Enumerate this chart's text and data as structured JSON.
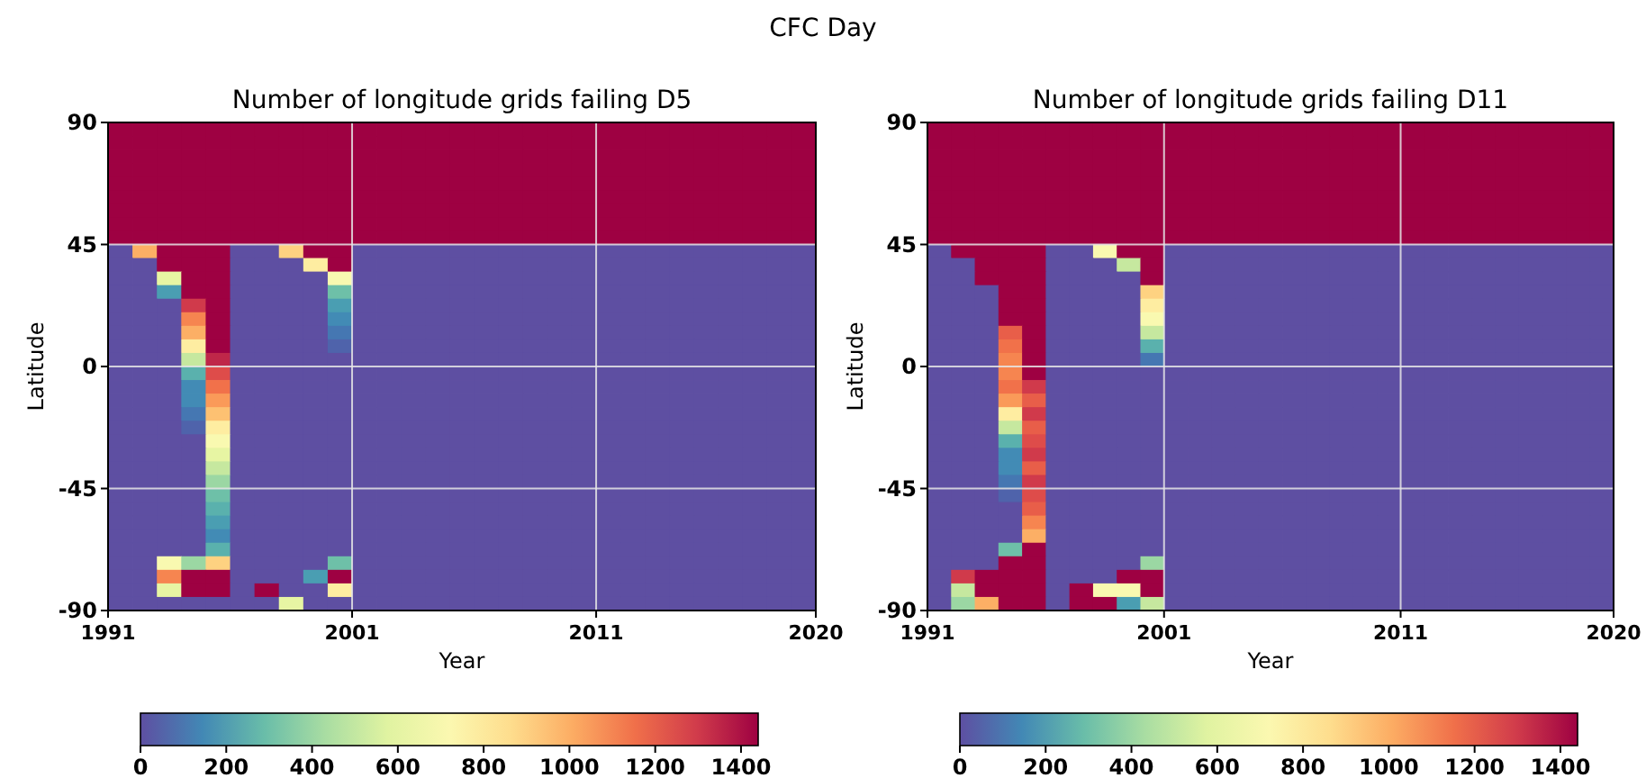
{
  "chart_data": [
    {
      "type": "heatmap",
      "title": "Number of longitude grids failing D5",
      "xlabel": "Year",
      "ylabel": "Latitude",
      "annotations": [
        "CFC Day"
      ],
      "x": [
        1991.5,
        1992.5,
        1993.5,
        1994.5,
        1995.5,
        1996.5,
        1997.5,
        1998.5,
        1999.5,
        2000.5,
        2001.5,
        2002.5,
        2003.5,
        2004.5,
        2005.5,
        2006.5,
        2007.5,
        2008.5,
        2009.5,
        2010.5,
        2011.5,
        2012.5,
        2013.5,
        2014.5,
        2015.5,
        2016.5,
        2017.5,
        2018.5,
        2019.5
      ],
      "xlim": [
        1991,
        2020
      ],
      "xticks": [
        1991,
        2001,
        2011,
        2020
      ],
      "ylim": [
        -90,
        90
      ],
      "yticks": [
        90,
        45,
        0,
        -45,
        -90
      ],
      "grid": true,
      "clim": [
        0,
        1440
      ],
      "cticks": [
        0,
        200,
        400,
        600,
        800,
        1000,
        1200,
        1400
      ],
      "cells": [
        [
          1440,
          1440,
          1440,
          1440,
          1440,
          1440,
          1440,
          1440,
          1440,
          1440,
          1440,
          1440,
          1440,
          1440,
          1440,
          1440,
          1440,
          1440,
          1440,
          1440,
          1440,
          1440,
          1440,
          1440,
          1440,
          1440,
          1440,
          1440,
          1440
        ],
        [
          1440,
          1440,
          1440,
          1440,
          1440,
          1440,
          1440,
          1440,
          1440,
          1440,
          1440,
          1440,
          1440,
          1440,
          1440,
          1440,
          1440,
          1440,
          1440,
          1440,
          1440,
          1440,
          1440,
          1440,
          1440,
          1440,
          1440,
          1440,
          1440
        ],
        [
          1440,
          1440,
          1440,
          1440,
          1440,
          1440,
          1440,
          1440,
          1440,
          1440,
          1440,
          1440,
          1440,
          1440,
          1440,
          1440,
          1440,
          1440,
          1440,
          1440,
          1440,
          1440,
          1440,
          1440,
          1440,
          1440,
          1440,
          1440,
          1440
        ],
        [
          1440,
          1440,
          1440,
          1440,
          1440,
          1440,
          1440,
          1440,
          1440,
          1440,
          1440,
          1440,
          1440,
          1440,
          1440,
          1440,
          1440,
          1440,
          1440,
          1440,
          1440,
          1440,
          1440,
          1440,
          1440,
          1440,
          1440,
          1440,
          1440
        ],
        [
          1440,
          1440,
          1440,
          1440,
          1440,
          1440,
          1440,
          1440,
          1440,
          1440,
          1440,
          1440,
          1440,
          1440,
          1440,
          1440,
          1440,
          1440,
          1440,
          1440,
          1440,
          1440,
          1440,
          1440,
          1440,
          1440,
          1440,
          1440,
          1440
        ],
        [
          1440,
          1440,
          1440,
          1440,
          1440,
          1440,
          1440,
          1440,
          1440,
          1440,
          1440,
          1440,
          1440,
          1440,
          1440,
          1440,
          1440,
          1440,
          1440,
          1440,
          1440,
          1440,
          1440,
          1440,
          1440,
          1440,
          1440,
          1440,
          1440
        ],
        [
          1440,
          1440,
          1440,
          1440,
          1440,
          1440,
          1440,
          1440,
          1440,
          1440,
          1440,
          1440,
          1440,
          1440,
          1440,
          1440,
          1440,
          1440,
          1440,
          1440,
          1440,
          1440,
          1440,
          1440,
          1440,
          1440,
          1440,
          1440,
          1440
        ],
        [
          1440,
          1440,
          1440,
          1440,
          1440,
          1440,
          1440,
          1440,
          1440,
          1440,
          1440,
          1440,
          1440,
          1440,
          1440,
          1440,
          1440,
          1440,
          1440,
          1440,
          1440,
          1440,
          1440,
          1440,
          1440,
          1440,
          1440,
          1440,
          1440
        ],
        [
          1440,
          1440,
          1440,
          1440,
          1440,
          1440,
          1440,
          1440,
          1440,
          1440,
          1440,
          1440,
          1440,
          1440,
          1440,
          1440,
          1440,
          1440,
          1440,
          1440,
          1440,
          1440,
          1440,
          1440,
          1440,
          1440,
          1440,
          1440,
          1440
        ],
        [
          0,
          1000,
          1440,
          1440,
          1440,
          0,
          0,
          900,
          1440,
          1440,
          0,
          0,
          0,
          0,
          0,
          0,
          0,
          0,
          0,
          0,
          0,
          0,
          0,
          0,
          0,
          0,
          0,
          0,
          0
        ],
        [
          0,
          0,
          1440,
          1440,
          1440,
          0,
          0,
          0,
          800,
          1440,
          0,
          0,
          0,
          0,
          0,
          0,
          0,
          0,
          0,
          0,
          0,
          0,
          0,
          0,
          0,
          0,
          0,
          0,
          0
        ],
        [
          0,
          0,
          600,
          1440,
          1440,
          0,
          0,
          0,
          0,
          700,
          0,
          0,
          0,
          0,
          0,
          0,
          0,
          0,
          0,
          0,
          0,
          0,
          0,
          0,
          0,
          0,
          0,
          0,
          0
        ],
        [
          0,
          0,
          200,
          1440,
          1440,
          0,
          0,
          0,
          0,
          300,
          0,
          0,
          0,
          0,
          0,
          0,
          0,
          0,
          0,
          0,
          0,
          0,
          0,
          0,
          0,
          0,
          0,
          0,
          0
        ],
        [
          0,
          0,
          0,
          1300,
          1440,
          0,
          0,
          0,
          0,
          200,
          0,
          0,
          0,
          0,
          0,
          0,
          0,
          0,
          0,
          0,
          0,
          0,
          0,
          0,
          0,
          0,
          0,
          0,
          0
        ],
        [
          0,
          0,
          0,
          1100,
          1440,
          0,
          0,
          0,
          0,
          150,
          0,
          0,
          0,
          0,
          0,
          0,
          0,
          0,
          0,
          0,
          0,
          0,
          0,
          0,
          0,
          0,
          0,
          0,
          0
        ],
        [
          0,
          0,
          0,
          1000,
          1440,
          0,
          0,
          0,
          0,
          100,
          0,
          0,
          0,
          0,
          0,
          0,
          0,
          0,
          0,
          0,
          0,
          0,
          0,
          0,
          0,
          0,
          0,
          0,
          0
        ],
        [
          0,
          0,
          0,
          800,
          1440,
          0,
          0,
          0,
          0,
          50,
          0,
          0,
          0,
          0,
          0,
          0,
          0,
          0,
          0,
          0,
          0,
          0,
          0,
          0,
          0,
          0,
          0,
          0,
          0
        ],
        [
          0,
          0,
          0,
          500,
          1350,
          0,
          0,
          0,
          0,
          0,
          0,
          0,
          0,
          0,
          0,
          0,
          0,
          0,
          0,
          0,
          0,
          0,
          0,
          0,
          0,
          0,
          0,
          0,
          0
        ],
        [
          0,
          0,
          0,
          250,
          1250,
          0,
          0,
          0,
          0,
          0,
          0,
          0,
          0,
          0,
          0,
          0,
          0,
          0,
          0,
          0,
          0,
          0,
          0,
          0,
          0,
          0,
          0,
          0,
          0
        ],
        [
          0,
          0,
          0,
          150,
          1150,
          0,
          0,
          0,
          0,
          0,
          0,
          0,
          0,
          0,
          0,
          0,
          0,
          0,
          0,
          0,
          0,
          0,
          0,
          0,
          0,
          0,
          0,
          0,
          0
        ],
        [
          0,
          0,
          0,
          150,
          1050,
          0,
          0,
          0,
          0,
          0,
          0,
          0,
          0,
          0,
          0,
          0,
          0,
          0,
          0,
          0,
          0,
          0,
          0,
          0,
          0,
          0,
          0,
          0,
          0
        ],
        [
          0,
          0,
          0,
          100,
          950,
          0,
          0,
          0,
          0,
          0,
          0,
          0,
          0,
          0,
          0,
          0,
          0,
          0,
          0,
          0,
          0,
          0,
          0,
          0,
          0,
          0,
          0,
          0,
          0
        ],
        [
          0,
          0,
          0,
          50,
          800,
          0,
          0,
          0,
          0,
          0,
          0,
          0,
          0,
          0,
          0,
          0,
          0,
          0,
          0,
          0,
          0,
          0,
          0,
          0,
          0,
          0,
          0,
          0,
          0
        ],
        [
          0,
          0,
          0,
          0,
          700,
          0,
          0,
          0,
          0,
          0,
          0,
          0,
          0,
          0,
          0,
          0,
          0,
          0,
          0,
          0,
          0,
          0,
          0,
          0,
          0,
          0,
          0,
          0,
          0
        ],
        [
          0,
          0,
          0,
          0,
          600,
          0,
          0,
          0,
          0,
          0,
          0,
          0,
          0,
          0,
          0,
          0,
          0,
          0,
          0,
          0,
          0,
          0,
          0,
          0,
          0,
          0,
          0,
          0,
          0
        ],
        [
          0,
          0,
          0,
          0,
          500,
          0,
          0,
          0,
          0,
          0,
          0,
          0,
          0,
          0,
          0,
          0,
          0,
          0,
          0,
          0,
          0,
          0,
          0,
          0,
          0,
          0,
          0,
          0,
          0
        ],
        [
          0,
          0,
          0,
          0,
          400,
          0,
          0,
          0,
          0,
          0,
          0,
          0,
          0,
          0,
          0,
          0,
          0,
          0,
          0,
          0,
          0,
          0,
          0,
          0,
          0,
          0,
          0,
          0,
          0
        ],
        [
          0,
          0,
          0,
          0,
          300,
          0,
          0,
          0,
          0,
          0,
          0,
          0,
          0,
          0,
          0,
          0,
          0,
          0,
          0,
          0,
          0,
          0,
          0,
          0,
          0,
          0,
          0,
          0,
          0
        ],
        [
          0,
          0,
          0,
          0,
          250,
          0,
          0,
          0,
          0,
          0,
          0,
          0,
          0,
          0,
          0,
          0,
          0,
          0,
          0,
          0,
          0,
          0,
          0,
          0,
          0,
          0,
          0,
          0,
          0
        ],
        [
          0,
          0,
          0,
          0,
          200,
          0,
          0,
          0,
          0,
          0,
          0,
          0,
          0,
          0,
          0,
          0,
          0,
          0,
          0,
          0,
          0,
          0,
          0,
          0,
          0,
          0,
          0,
          0,
          0
        ],
        [
          0,
          0,
          0,
          0,
          150,
          0,
          0,
          0,
          0,
          0,
          0,
          0,
          0,
          0,
          0,
          0,
          0,
          0,
          0,
          0,
          0,
          0,
          0,
          0,
          0,
          0,
          0,
          0,
          0
        ],
        [
          0,
          0,
          0,
          0,
          250,
          0,
          0,
          0,
          0,
          0,
          0,
          0,
          0,
          0,
          0,
          0,
          0,
          0,
          0,
          0,
          0,
          0,
          0,
          0,
          0,
          0,
          0,
          0,
          0
        ],
        [
          0,
          0,
          700,
          400,
          900,
          0,
          0,
          0,
          0,
          300,
          0,
          0,
          0,
          0,
          0,
          0,
          0,
          0,
          0,
          0,
          0,
          0,
          0,
          0,
          0,
          0,
          0,
          0,
          0
        ],
        [
          0,
          0,
          1100,
          1440,
          1440,
          0,
          0,
          0,
          200,
          1440,
          0,
          0,
          0,
          0,
          0,
          0,
          0,
          0,
          0,
          0,
          0,
          0,
          0,
          0,
          0,
          0,
          0,
          0,
          0
        ],
        [
          0,
          0,
          600,
          1440,
          1440,
          0,
          1440,
          0,
          0,
          800,
          0,
          0,
          0,
          0,
          0,
          0,
          0,
          0,
          0,
          0,
          0,
          0,
          0,
          0,
          0,
          0,
          0,
          0,
          0
        ],
        [
          0,
          0,
          0,
          0,
          0,
          0,
          0,
          600,
          0,
          0,
          0,
          0,
          0,
          0,
          0,
          0,
          0,
          0,
          0,
          0,
          0,
          0,
          0,
          0,
          0,
          0,
          0,
          0,
          0
        ]
      ]
    },
    {
      "type": "heatmap",
      "title": "Number of longitude grids failing D11",
      "xlabel": "Year",
      "ylabel": "Latitude",
      "x": [
        1991.5,
        1992.5,
        1993.5,
        1994.5,
        1995.5,
        1996.5,
        1997.5,
        1998.5,
        1999.5,
        2000.5,
        2001.5,
        2002.5,
        2003.5,
        2004.5,
        2005.5,
        2006.5,
        2007.5,
        2008.5,
        2009.5,
        2010.5,
        2011.5,
        2012.5,
        2013.5,
        2014.5,
        2015.5,
        2016.5,
        2017.5,
        2018.5,
        2019.5
      ],
      "xlim": [
        1991,
        2020
      ],
      "xticks": [
        1991,
        2001,
        2011,
        2020
      ],
      "ylim": [
        -90,
        90
      ],
      "yticks": [
        90,
        45,
        0,
        -45,
        -90
      ],
      "grid": true,
      "clim": [
        0,
        1440
      ],
      "cticks": [
        0,
        200,
        400,
        600,
        800,
        1000,
        1200,
        1400
      ],
      "cells": [
        [
          1440,
          1440,
          1440,
          1440,
          1440,
          1440,
          1440,
          1440,
          1440,
          1440,
          1440,
          1440,
          1440,
          1440,
          1440,
          1440,
          1440,
          1440,
          1440,
          1440,
          1440,
          1440,
          1440,
          1440,
          1440,
          1440,
          1440,
          1440,
          1440
        ],
        [
          1440,
          1440,
          1440,
          1440,
          1440,
          1440,
          1440,
          1440,
          1440,
          1440,
          1440,
          1440,
          1440,
          1440,
          1440,
          1440,
          1440,
          1440,
          1440,
          1440,
          1440,
          1440,
          1440,
          1440,
          1440,
          1440,
          1440,
          1440,
          1440
        ],
        [
          1440,
          1440,
          1440,
          1440,
          1440,
          1440,
          1440,
          1440,
          1440,
          1440,
          1440,
          1440,
          1440,
          1440,
          1440,
          1440,
          1440,
          1440,
          1440,
          1440,
          1440,
          1440,
          1440,
          1440,
          1440,
          1440,
          1440,
          1440,
          1440
        ],
        [
          1440,
          1440,
          1440,
          1440,
          1440,
          1440,
          1440,
          1440,
          1440,
          1440,
          1440,
          1440,
          1440,
          1440,
          1440,
          1440,
          1440,
          1440,
          1440,
          1440,
          1440,
          1440,
          1440,
          1440,
          1440,
          1440,
          1440,
          1440,
          1440
        ],
        [
          1440,
          1440,
          1440,
          1440,
          1440,
          1440,
          1440,
          1440,
          1440,
          1440,
          1440,
          1440,
          1440,
          1440,
          1440,
          1440,
          1440,
          1440,
          1440,
          1440,
          1440,
          1440,
          1440,
          1440,
          1440,
          1440,
          1440,
          1440,
          1440
        ],
        [
          1440,
          1440,
          1440,
          1440,
          1440,
          1440,
          1440,
          1440,
          1440,
          1440,
          1440,
          1440,
          1440,
          1440,
          1440,
          1440,
          1440,
          1440,
          1440,
          1440,
          1440,
          1440,
          1440,
          1440,
          1440,
          1440,
          1440,
          1440,
          1440
        ],
        [
          1440,
          1440,
          1440,
          1440,
          1440,
          1440,
          1440,
          1440,
          1440,
          1440,
          1440,
          1440,
          1440,
          1440,
          1440,
          1440,
          1440,
          1440,
          1440,
          1440,
          1440,
          1440,
          1440,
          1440,
          1440,
          1440,
          1440,
          1440,
          1440
        ],
        [
          1440,
          1440,
          1440,
          1440,
          1440,
          1440,
          1440,
          1440,
          1440,
          1440,
          1440,
          1440,
          1440,
          1440,
          1440,
          1440,
          1440,
          1440,
          1440,
          1440,
          1440,
          1440,
          1440,
          1440,
          1440,
          1440,
          1440,
          1440,
          1440
        ],
        [
          1440,
          1440,
          1440,
          1440,
          1440,
          1440,
          1440,
          1440,
          1440,
          1440,
          1440,
          1440,
          1440,
          1440,
          1440,
          1440,
          1440,
          1440,
          1440,
          1440,
          1440,
          1440,
          1440,
          1440,
          1440,
          1440,
          1440,
          1440,
          1440
        ],
        [
          0,
          1440,
          1440,
          1440,
          1440,
          0,
          0,
          700,
          1440,
          1440,
          0,
          0,
          0,
          0,
          0,
          0,
          0,
          0,
          0,
          0,
          0,
          0,
          0,
          0,
          0,
          0,
          0,
          0,
          0
        ],
        [
          0,
          0,
          1440,
          1440,
          1440,
          0,
          0,
          0,
          500,
          1440,
          0,
          0,
          0,
          0,
          0,
          0,
          0,
          0,
          0,
          0,
          0,
          0,
          0,
          0,
          0,
          0,
          0,
          0,
          0
        ],
        [
          0,
          0,
          1440,
          1440,
          1440,
          0,
          0,
          0,
          0,
          1440,
          0,
          0,
          0,
          0,
          0,
          0,
          0,
          0,
          0,
          0,
          0,
          0,
          0,
          0,
          0,
          0,
          0,
          0,
          0
        ],
        [
          0,
          0,
          0,
          1440,
          1440,
          0,
          0,
          0,
          0,
          900,
          0,
          0,
          0,
          0,
          0,
          0,
          0,
          0,
          0,
          0,
          0,
          0,
          0,
          0,
          0,
          0,
          0,
          0,
          0
        ],
        [
          0,
          0,
          0,
          1440,
          1440,
          0,
          0,
          0,
          0,
          800,
          0,
          0,
          0,
          0,
          0,
          0,
          0,
          0,
          0,
          0,
          0,
          0,
          0,
          0,
          0,
          0,
          0,
          0,
          0
        ],
        [
          0,
          0,
          0,
          1440,
          1440,
          0,
          0,
          0,
          0,
          700,
          0,
          0,
          0,
          0,
          0,
          0,
          0,
          0,
          0,
          0,
          0,
          0,
          0,
          0,
          0,
          0,
          0,
          0,
          0
        ],
        [
          0,
          0,
          0,
          1200,
          1440,
          0,
          0,
          0,
          0,
          500,
          0,
          0,
          0,
          0,
          0,
          0,
          0,
          0,
          0,
          0,
          0,
          0,
          0,
          0,
          0,
          0,
          0,
          0,
          0
        ],
        [
          0,
          0,
          0,
          1150,
          1440,
          0,
          0,
          0,
          0,
          250,
          0,
          0,
          0,
          0,
          0,
          0,
          0,
          0,
          0,
          0,
          0,
          0,
          0,
          0,
          0,
          0,
          0,
          0,
          0
        ],
        [
          0,
          0,
          0,
          1100,
          1440,
          0,
          0,
          0,
          0,
          100,
          0,
          0,
          0,
          0,
          0,
          0,
          0,
          0,
          0,
          0,
          0,
          0,
          0,
          0,
          0,
          0,
          0,
          0,
          0
        ],
        [
          0,
          0,
          0,
          1100,
          1440,
          0,
          0,
          0,
          0,
          0,
          0,
          0,
          0,
          0,
          0,
          0,
          0,
          0,
          0,
          0,
          0,
          0,
          0,
          0,
          0,
          0,
          0,
          0,
          0
        ],
        [
          0,
          0,
          0,
          1150,
          1300,
          0,
          0,
          0,
          0,
          0,
          0,
          0,
          0,
          0,
          0,
          0,
          0,
          0,
          0,
          0,
          0,
          0,
          0,
          0,
          0,
          0,
          0,
          0,
          0
        ],
        [
          0,
          0,
          0,
          1050,
          1200,
          0,
          0,
          0,
          0,
          0,
          0,
          0,
          0,
          0,
          0,
          0,
          0,
          0,
          0,
          0,
          0,
          0,
          0,
          0,
          0,
          0,
          0,
          0,
          0
        ],
        [
          0,
          0,
          0,
          800,
          1300,
          0,
          0,
          0,
          0,
          0,
          0,
          0,
          0,
          0,
          0,
          0,
          0,
          0,
          0,
          0,
          0,
          0,
          0,
          0,
          0,
          0,
          0,
          0,
          0
        ],
        [
          0,
          0,
          0,
          500,
          1200,
          0,
          0,
          0,
          0,
          0,
          0,
          0,
          0,
          0,
          0,
          0,
          0,
          0,
          0,
          0,
          0,
          0,
          0,
          0,
          0,
          0,
          0,
          0,
          0
        ],
        [
          0,
          0,
          0,
          250,
          1250,
          0,
          0,
          0,
          0,
          0,
          0,
          0,
          0,
          0,
          0,
          0,
          0,
          0,
          0,
          0,
          0,
          0,
          0,
          0,
          0,
          0,
          0,
          0,
          0
        ],
        [
          0,
          0,
          0,
          150,
          1300,
          0,
          0,
          0,
          0,
          0,
          0,
          0,
          0,
          0,
          0,
          0,
          0,
          0,
          0,
          0,
          0,
          0,
          0,
          0,
          0,
          0,
          0,
          0,
          0
        ],
        [
          0,
          0,
          0,
          150,
          1200,
          0,
          0,
          0,
          0,
          0,
          0,
          0,
          0,
          0,
          0,
          0,
          0,
          0,
          0,
          0,
          0,
          0,
          0,
          0,
          0,
          0,
          0,
          0,
          0
        ],
        [
          0,
          0,
          0,
          100,
          1300,
          0,
          0,
          0,
          0,
          0,
          0,
          0,
          0,
          0,
          0,
          0,
          0,
          0,
          0,
          0,
          0,
          0,
          0,
          0,
          0,
          0,
          0,
          0,
          0
        ],
        [
          0,
          0,
          0,
          50,
          1250,
          0,
          0,
          0,
          0,
          0,
          0,
          0,
          0,
          0,
          0,
          0,
          0,
          0,
          0,
          0,
          0,
          0,
          0,
          0,
          0,
          0,
          0,
          0,
          0
        ],
        [
          0,
          0,
          0,
          0,
          1200,
          0,
          0,
          0,
          0,
          0,
          0,
          0,
          0,
          0,
          0,
          0,
          0,
          0,
          0,
          0,
          0,
          0,
          0,
          0,
          0,
          0,
          0,
          0,
          0
        ],
        [
          0,
          0,
          0,
          0,
          1100,
          0,
          0,
          0,
          0,
          0,
          0,
          0,
          0,
          0,
          0,
          0,
          0,
          0,
          0,
          0,
          0,
          0,
          0,
          0,
          0,
          0,
          0,
          0,
          0
        ],
        [
          0,
          0,
          0,
          0,
          1000,
          0,
          0,
          0,
          0,
          0,
          0,
          0,
          0,
          0,
          0,
          0,
          0,
          0,
          0,
          0,
          0,
          0,
          0,
          0,
          0,
          0,
          0,
          0,
          0
        ],
        [
          0,
          0,
          0,
          300,
          1440,
          0,
          0,
          0,
          0,
          0,
          0,
          0,
          0,
          0,
          0,
          0,
          0,
          0,
          0,
          0,
          0,
          0,
          0,
          0,
          0,
          0,
          0,
          0,
          0
        ],
        [
          0,
          0,
          0,
          1440,
          1440,
          0,
          0,
          0,
          0,
          400,
          0,
          0,
          0,
          0,
          0,
          0,
          0,
          0,
          0,
          0,
          0,
          0,
          0,
          0,
          0,
          0,
          0,
          0,
          0
        ],
        [
          0,
          1300,
          1440,
          1440,
          1440,
          0,
          0,
          0,
          1440,
          1440,
          0,
          0,
          0,
          0,
          0,
          0,
          0,
          0,
          0,
          0,
          0,
          0,
          0,
          0,
          0,
          0,
          0,
          0,
          0
        ],
        [
          0,
          500,
          1440,
          1440,
          1440,
          0,
          1440,
          700,
          700,
          1440,
          0,
          0,
          0,
          0,
          0,
          0,
          0,
          0,
          0,
          0,
          0,
          0,
          0,
          0,
          0,
          0,
          0,
          0,
          0
        ],
        [
          0,
          400,
          1000,
          1440,
          1440,
          0,
          1440,
          1440,
          200,
          500,
          0,
          0,
          0,
          0,
          0,
          0,
          0,
          0,
          0,
          0,
          0,
          0,
          0,
          0,
          0,
          0,
          0,
          0,
          0
        ]
      ]
    }
  ]
}
